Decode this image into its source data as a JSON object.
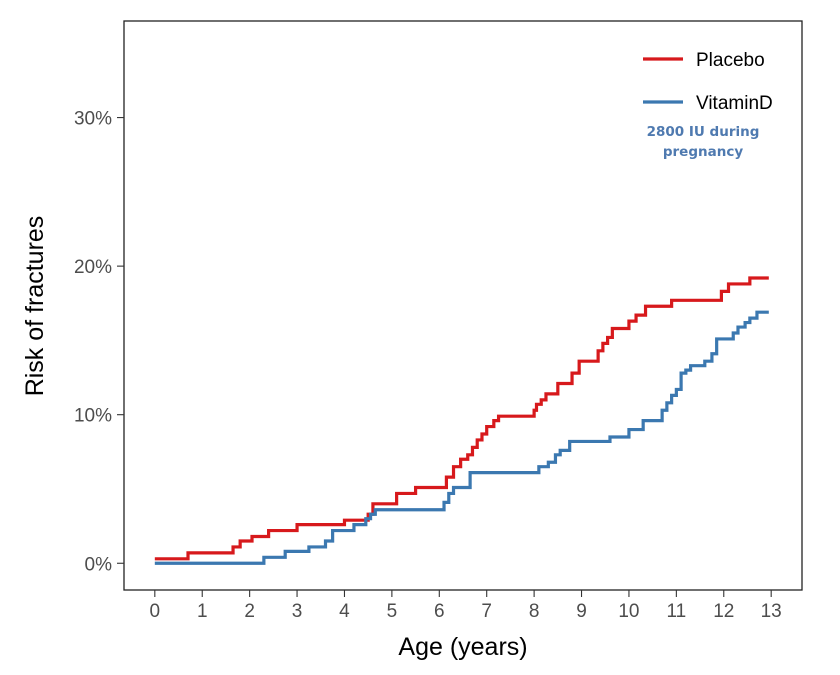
{
  "chart_data": {
    "type": "line",
    "step": true,
    "xlabel": "Age (years)",
    "ylabel": "Risk of fractures",
    "xlim": [
      -0.65,
      13.65
    ],
    "ylim": [
      -1.8,
      36.5
    ],
    "x_ticks": [
      0,
      1,
      2,
      3,
      4,
      5,
      6,
      7,
      8,
      9,
      10,
      11,
      12,
      13
    ],
    "y_ticks": [
      0,
      10,
      20,
      30
    ],
    "y_tick_labels": [
      "0%",
      "10%",
      "20%",
      "30%"
    ],
    "grid": false,
    "legend_position": "top-right",
    "annotation": {
      "lines": [
        "2800 IU during",
        "pregnancy"
      ],
      "color": "#4f7ab0"
    },
    "series": [
      {
        "name": "Placebo",
        "color": "#d7191c",
        "points": [
          [
            0,
            0.3
          ],
          [
            0.7,
            0.7
          ],
          [
            1.65,
            1.1
          ],
          [
            1.8,
            1.5
          ],
          [
            2.05,
            1.8
          ],
          [
            2.4,
            2.2
          ],
          [
            3.0,
            2.6
          ],
          [
            4.0,
            2.9
          ],
          [
            4.5,
            3.3
          ],
          [
            4.6,
            4.0
          ],
          [
            5.1,
            4.7
          ],
          [
            5.5,
            5.1
          ],
          [
            6.15,
            5.8
          ],
          [
            6.3,
            6.5
          ],
          [
            6.45,
            7.0
          ],
          [
            6.6,
            7.3
          ],
          [
            6.7,
            7.8
          ],
          [
            6.8,
            8.3
          ],
          [
            6.9,
            8.7
          ],
          [
            7.0,
            9.2
          ],
          [
            7.15,
            9.6
          ],
          [
            7.25,
            9.9
          ],
          [
            8.0,
            10.3
          ],
          [
            8.05,
            10.7
          ],
          [
            8.15,
            11.0
          ],
          [
            8.25,
            11.4
          ],
          [
            8.5,
            12.1
          ],
          [
            8.8,
            12.8
          ],
          [
            8.95,
            13.6
          ],
          [
            9.35,
            14.3
          ],
          [
            9.45,
            14.8
          ],
          [
            9.55,
            15.2
          ],
          [
            9.65,
            15.8
          ],
          [
            10.0,
            16.3
          ],
          [
            10.15,
            16.7
          ],
          [
            10.35,
            17.3
          ],
          [
            10.9,
            17.7
          ],
          [
            11.95,
            18.3
          ],
          [
            12.1,
            18.8
          ],
          [
            12.55,
            19.2
          ],
          [
            12.95,
            19.2
          ]
        ]
      },
      {
        "name": "VitaminD",
        "color": "#3b78b0",
        "points": [
          [
            0,
            0.0
          ],
          [
            2.3,
            0.4
          ],
          [
            2.75,
            0.8
          ],
          [
            3.25,
            1.1
          ],
          [
            3.6,
            1.5
          ],
          [
            3.75,
            2.2
          ],
          [
            4.2,
            2.6
          ],
          [
            4.45,
            3.0
          ],
          [
            4.55,
            3.3
          ],
          [
            4.65,
            3.6
          ],
          [
            6.1,
            4.1
          ],
          [
            6.2,
            4.7
          ],
          [
            6.3,
            5.1
          ],
          [
            6.65,
            6.1
          ],
          [
            7.5,
            6.1
          ],
          [
            8.1,
            6.5
          ],
          [
            8.3,
            6.8
          ],
          [
            8.45,
            7.3
          ],
          [
            8.55,
            7.6
          ],
          [
            8.75,
            8.2
          ],
          [
            9.6,
            8.5
          ],
          [
            10.0,
            9.0
          ],
          [
            10.3,
            9.6
          ],
          [
            10.7,
            10.3
          ],
          [
            10.8,
            10.8
          ],
          [
            10.9,
            11.3
          ],
          [
            11.0,
            11.7
          ],
          [
            11.1,
            12.8
          ],
          [
            11.2,
            13.0
          ],
          [
            11.3,
            13.3
          ],
          [
            11.6,
            13.6
          ],
          [
            11.75,
            14.1
          ],
          [
            11.85,
            15.1
          ],
          [
            12.2,
            15.5
          ],
          [
            12.3,
            15.9
          ],
          [
            12.45,
            16.2
          ],
          [
            12.55,
            16.5
          ],
          [
            12.7,
            16.9
          ],
          [
            12.95,
            16.9
          ]
        ]
      }
    ]
  }
}
